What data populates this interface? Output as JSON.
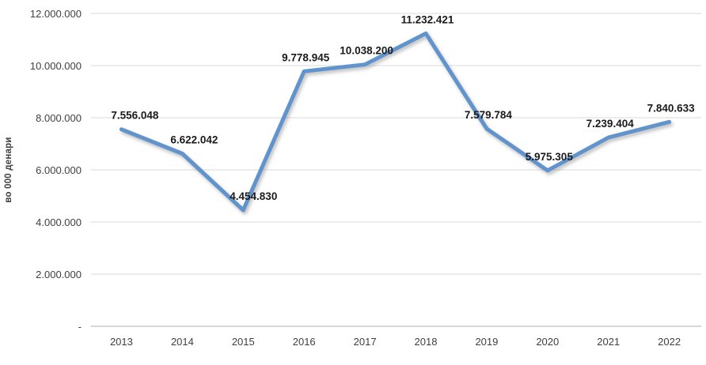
{
  "chart_data": {
    "type": "line",
    "title": "",
    "ylabel": "во 000 денари",
    "xlabel": "",
    "categories": [
      "2013",
      "2014",
      "2015",
      "2016",
      "2017",
      "2018",
      "2019",
      "2020",
      "2021",
      "2022"
    ],
    "series": [
      {
        "values": [
          7556048,
          6622042,
          4454830,
          9778945,
          10038200,
          11232421,
          7579784,
          5975305,
          7239404,
          7840633
        ],
        "labels": [
          "7.556.048",
          "6.622.042",
          "4.454.830",
          "9.778.945",
          "10.038.200",
          "11.232.421",
          "7.579.784",
          "5.975.305",
          "7.239.404",
          "7.840.633"
        ],
        "color": "#6194CC"
      }
    ],
    "ylim": [
      0,
      12000000
    ],
    "ytick_interval": 2000000,
    "ytick_labels": [
      "-",
      "2.000.000",
      "4.000.000",
      "6.000.000",
      "8.000.000",
      "10.000.000",
      "12.000.000"
    ],
    "grid": "horizontal",
    "legend": "none",
    "label_dx": [
      17,
      15,
      13,
      2,
      2,
      2,
      2,
      2,
      2,
      2
    ]
  },
  "colors": {
    "background": "#FFFFFF",
    "gridline": "#D9D9D9",
    "axis_line": "#BFBFBF",
    "tick_text": "#3F3F3F",
    "data_label": "#1A1A1A"
  }
}
